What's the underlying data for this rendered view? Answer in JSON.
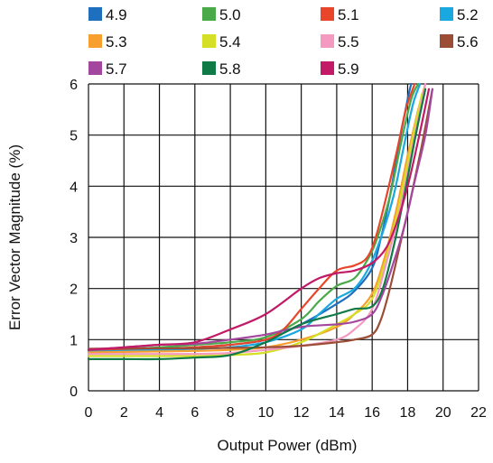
{
  "chart_data": {
    "type": "line",
    "xlabel": "Output Power (dBm)",
    "ylabel": "Error Vector Magnitude (%)",
    "xlim": [
      0,
      22
    ],
    "ylim": [
      0,
      6
    ],
    "xticks": [
      0,
      2,
      4,
      6,
      8,
      10,
      12,
      14,
      16,
      18,
      20,
      22
    ],
    "yticks": [
      0,
      1,
      2,
      3,
      4,
      5,
      6
    ],
    "grid": true,
    "legend_position": "top",
    "series": [
      {
        "name": "4.9",
        "color": "#1f6fbf",
        "x": [
          0,
          2,
          4,
          6,
          8,
          10,
          12,
          14,
          15,
          16,
          16.5,
          17,
          17.5,
          18,
          18.2
        ],
        "y": [
          0.78,
          0.8,
          0.82,
          0.85,
          0.9,
          1.0,
          1.3,
          1.7,
          1.95,
          2.4,
          3.0,
          3.8,
          4.8,
          5.7,
          6.0
        ]
      },
      {
        "name": "5.0",
        "color": "#4aaa4a",
        "x": [
          0,
          2,
          4,
          6,
          8,
          10,
          12,
          13,
          14,
          15,
          15.8,
          16.3,
          17,
          17.6,
          18.2,
          18.6
        ],
        "y": [
          0.8,
          0.82,
          0.85,
          0.9,
          0.95,
          1.05,
          1.4,
          1.75,
          2.05,
          2.2,
          2.6,
          3.0,
          3.8,
          4.8,
          5.7,
          6.0
        ]
      },
      {
        "name": "5.1",
        "color": "#e8452a",
        "x": [
          0,
          2,
          4,
          6,
          8,
          10,
          11,
          12,
          13,
          14,
          15,
          15.7,
          16.2,
          16.8,
          17.4,
          17.9,
          18.4
        ],
        "y": [
          0.78,
          0.8,
          0.82,
          0.85,
          0.9,
          1.0,
          1.2,
          1.6,
          2.0,
          2.35,
          2.45,
          2.6,
          3.0,
          3.8,
          4.7,
          5.5,
          6.0
        ]
      },
      {
        "name": "5.2",
        "color": "#1aa8e0",
        "x": [
          0,
          2,
          4,
          6,
          8,
          10,
          12,
          13,
          14,
          15,
          15.8,
          16.5,
          17.2,
          17.8,
          18.3,
          18.7
        ],
        "y": [
          0.76,
          0.78,
          0.8,
          0.82,
          0.85,
          0.95,
          1.2,
          1.5,
          1.8,
          2.0,
          2.4,
          3.0,
          3.8,
          4.8,
          5.6,
          6.0
        ]
      },
      {
        "name": "5.3",
        "color": "#f7a030",
        "x": [
          0,
          2,
          4,
          6,
          8,
          10,
          12,
          14,
          15,
          16,
          16.7,
          17.4,
          18,
          18.6,
          19
        ],
        "y": [
          0.75,
          0.76,
          0.77,
          0.78,
          0.8,
          0.85,
          1.0,
          1.25,
          1.5,
          1.9,
          2.6,
          3.6,
          4.6,
          5.5,
          6.0
        ]
      },
      {
        "name": "5.4",
        "color": "#d4df26",
        "x": [
          0,
          2,
          4,
          6,
          8,
          10,
          12,
          14,
          15,
          16,
          16.8,
          17.5,
          18.2,
          18.8
        ],
        "y": [
          0.68,
          0.68,
          0.68,
          0.68,
          0.7,
          0.75,
          0.95,
          1.3,
          1.5,
          1.8,
          2.6,
          3.6,
          4.8,
          5.8
        ]
      },
      {
        "name": "5.5",
        "color": "#f49ac1",
        "x": [
          0,
          2,
          4,
          6,
          8,
          10,
          12,
          14,
          15,
          16,
          16.8,
          17.6,
          18.3,
          19
        ],
        "y": [
          0.72,
          0.72,
          0.72,
          0.72,
          0.74,
          0.8,
          0.88,
          1.0,
          1.2,
          1.6,
          2.5,
          3.6,
          4.8,
          6.0
        ]
      },
      {
        "name": "5.6",
        "color": "#9b4d36",
        "x": [
          0,
          2,
          4,
          6,
          8,
          10,
          12,
          14,
          15,
          16,
          16.5,
          17,
          17.6,
          18.2,
          18.8,
          19.4
        ],
        "y": [
          0.82,
          0.83,
          0.83,
          0.83,
          0.84,
          0.85,
          0.88,
          0.95,
          1.0,
          1.1,
          1.4,
          2.0,
          2.9,
          3.8,
          4.8,
          5.9
        ]
      },
      {
        "name": "5.7",
        "color": "#a3479e",
        "x": [
          0,
          2,
          4,
          6,
          8,
          10,
          12,
          14,
          15,
          16,
          16.6,
          17.2,
          17.8,
          18.4,
          19,
          19.4
        ],
        "y": [
          0.8,
          0.85,
          0.9,
          0.92,
          1.0,
          1.1,
          1.25,
          1.3,
          1.35,
          1.5,
          1.9,
          2.5,
          3.2,
          4.1,
          5.0,
          5.9
        ]
      },
      {
        "name": "5.8",
        "color": "#0f7a46",
        "x": [
          0,
          2,
          4,
          6,
          8,
          10,
          12,
          14,
          15,
          16,
          16.6,
          17.2,
          17.8,
          18.4,
          19
        ],
        "y": [
          0.62,
          0.62,
          0.62,
          0.65,
          0.7,
          0.95,
          1.3,
          1.5,
          1.6,
          1.65,
          2.0,
          2.8,
          3.8,
          4.9,
          5.9
        ]
      },
      {
        "name": "5.9",
        "color": "#c21a67",
        "x": [
          0,
          2,
          4,
          6,
          8,
          10,
          12,
          13,
          14,
          15,
          16,
          16.8,
          17.4,
          18,
          18.6,
          19.2
        ],
        "y": [
          0.8,
          0.85,
          0.9,
          0.95,
          1.2,
          1.5,
          2.0,
          2.2,
          2.3,
          2.35,
          2.5,
          2.8,
          3.3,
          4.0,
          4.9,
          5.9
        ]
      }
    ]
  }
}
